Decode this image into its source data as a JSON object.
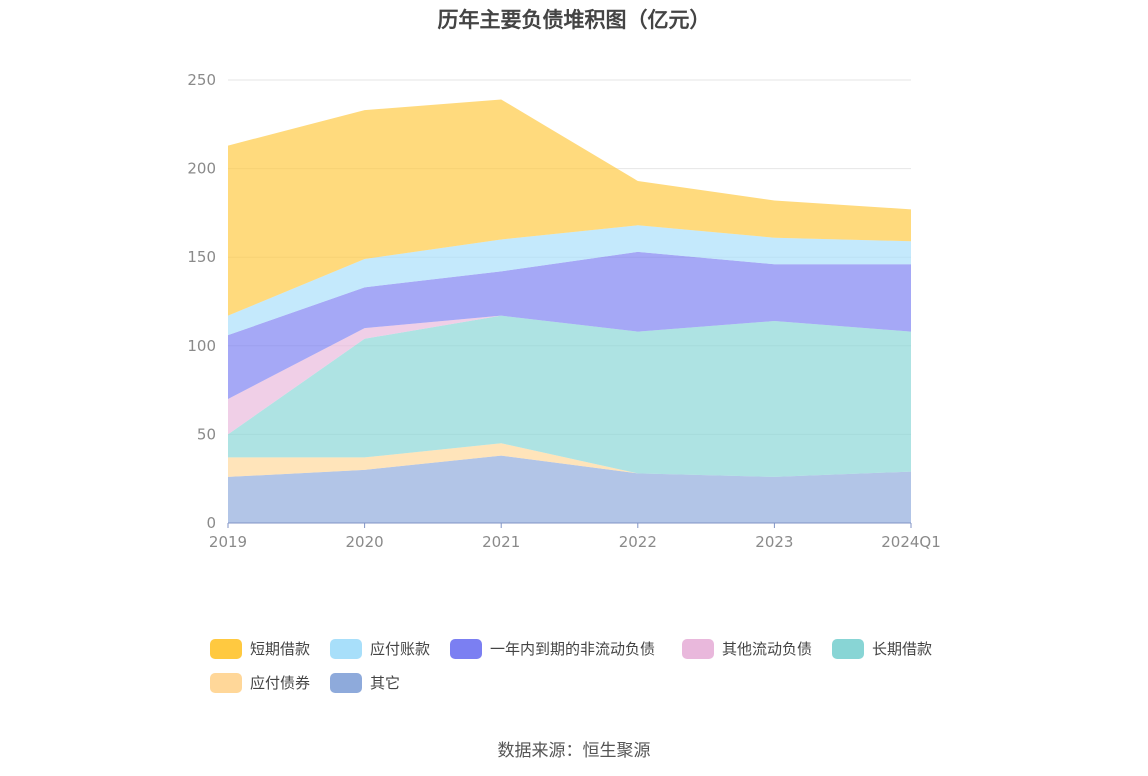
{
  "chart_data": {
    "type": "area",
    "stacked": true,
    "title": "历年主要负债堆积图（亿元）",
    "categories": [
      "2019",
      "2020",
      "2021",
      "2022",
      "2023",
      "2024Q1"
    ],
    "ylim": [
      0,
      250
    ],
    "yticks": [
      0,
      50,
      100,
      150,
      200,
      250
    ],
    "grid": true,
    "legend_position": "bottom",
    "series": [
      {
        "name": "其它",
        "color": "#8eaadb",
        "values": [
          26,
          30,
          38,
          28,
          26,
          29
        ]
      },
      {
        "name": "应付债券",
        "color": "#ffd799",
        "values": [
          11,
          7,
          7,
          0,
          0,
          0
        ]
      },
      {
        "name": "长期借款",
        "color": "#88d5d5",
        "values": [
          13,
          67,
          72,
          80,
          88,
          79
        ]
      },
      {
        "name": "其他流动负债",
        "color": "#e9b8dc",
        "values": [
          20,
          6,
          0,
          0,
          0,
          0
        ]
      },
      {
        "name": "一年内到期的非流动负债",
        "color": "#7b7ff2",
        "values": [
          36,
          23,
          25,
          45,
          32,
          38
        ]
      },
      {
        "name": "应付账款",
        "color": "#a8dffa",
        "values": [
          11,
          16,
          18,
          15,
          15,
          13
        ]
      },
      {
        "name": "短期借款",
        "color": "#ffc940",
        "values": [
          96,
          84,
          79,
          25,
          21,
          18
        ]
      }
    ],
    "legend_order": [
      "短期借款",
      "应付账款",
      "一年内到期的非流动负债",
      "其他流动负债",
      "长期借款",
      "应付债券",
      "其它"
    ]
  },
  "source": "数据来源：恒生聚源"
}
